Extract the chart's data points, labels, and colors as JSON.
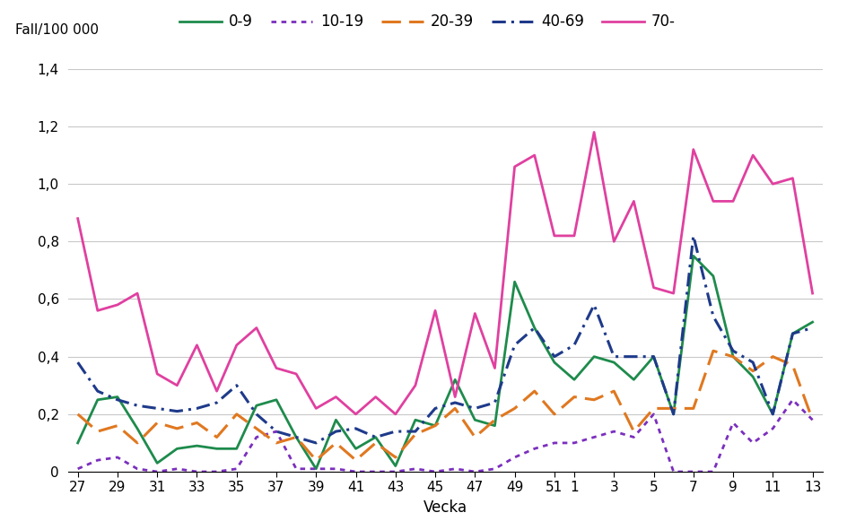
{
  "weeks": [
    27,
    28,
    29,
    30,
    31,
    32,
    33,
    34,
    35,
    36,
    37,
    38,
    39,
    40,
    41,
    42,
    43,
    44,
    45,
    46,
    47,
    48,
    49,
    50,
    51,
    1,
    2,
    3,
    4,
    5,
    6,
    7,
    8,
    9,
    10,
    11,
    12,
    13
  ],
  "xtick_labels": [
    "27",
    "29",
    "31",
    "33",
    "35",
    "37",
    "39",
    "41",
    "43",
    "45",
    "47",
    "49",
    "51",
    "1",
    "3",
    "5",
    "7",
    "9",
    "11",
    "13"
  ],
  "series": {
    "0-9": [
      0.1,
      0.25,
      0.26,
      0.15,
      0.03,
      0.08,
      0.09,
      0.08,
      0.08,
      0.23,
      0.25,
      0.12,
      0.01,
      0.18,
      0.08,
      0.12,
      0.02,
      0.18,
      0.16,
      0.32,
      0.18,
      0.16,
      0.66,
      0.5,
      0.38,
      0.32,
      0.4,
      0.38,
      0.32,
      0.4,
      0.2,
      0.75,
      0.68,
      0.4,
      0.33,
      0.2,
      0.48,
      0.52
    ],
    "10-19": [
      0.01,
      0.04,
      0.05,
      0.01,
      0.0,
      0.01,
      0.0,
      0.0,
      0.01,
      0.12,
      0.14,
      0.01,
      0.01,
      0.01,
      0.0,
      0.0,
      0.0,
      0.01,
      0.0,
      0.01,
      0.0,
      0.01,
      0.05,
      0.08,
      0.1,
      0.1,
      0.12,
      0.14,
      0.12,
      0.2,
      0.0,
      0.0,
      0.0,
      0.17,
      0.1,
      0.15,
      0.25,
      0.18
    ],
    "20-39": [
      0.2,
      0.14,
      0.16,
      0.1,
      0.17,
      0.15,
      0.17,
      0.12,
      0.2,
      0.15,
      0.1,
      0.12,
      0.04,
      0.1,
      0.04,
      0.1,
      0.05,
      0.13,
      0.16,
      0.22,
      0.12,
      0.18,
      0.22,
      0.28,
      0.2,
      0.26,
      0.25,
      0.28,
      0.14,
      0.22,
      0.22,
      0.22,
      0.42,
      0.4,
      0.35,
      0.4,
      0.37,
      0.18
    ],
    "40-69": [
      0.38,
      0.28,
      0.25,
      0.23,
      0.22,
      0.21,
      0.22,
      0.24,
      0.3,
      0.2,
      0.14,
      0.12,
      0.1,
      0.14,
      0.15,
      0.12,
      0.14,
      0.14,
      0.22,
      0.24,
      0.22,
      0.24,
      0.44,
      0.5,
      0.4,
      0.44,
      0.58,
      0.4,
      0.4,
      0.4,
      0.2,
      0.82,
      0.54,
      0.42,
      0.38,
      0.2,
      0.48,
      0.5
    ],
    "70-": [
      0.88,
      0.56,
      0.58,
      0.62,
      0.34,
      0.3,
      0.44,
      0.28,
      0.44,
      0.5,
      0.36,
      0.34,
      0.22,
      0.26,
      0.2,
      0.26,
      0.2,
      0.3,
      0.56,
      0.26,
      0.55,
      0.36,
      1.06,
      1.1,
      0.82,
      0.82,
      1.18,
      0.8,
      0.94,
      0.64,
      0.62,
      1.12,
      0.94,
      0.94,
      1.1,
      1.0,
      1.02,
      0.62
    ]
  },
  "colors": {
    "0-9": "#1e8b4c",
    "10-19": "#7b2fbe",
    "20-39": "#e07820",
    "40-69": "#1e3a8a",
    "70-": "#e040a0"
  },
  "linewidths": {
    "0-9": 2.0,
    "10-19": 2.0,
    "20-39": 2.2,
    "40-69": 2.2,
    "70-": 2.0
  },
  "ylabel": "Fall/100 000",
  "xlabel": "Vecka",
  "ylim": [
    0,
    1.4
  ],
  "yticks": [
    0,
    0.2,
    0.4,
    0.6,
    0.8,
    1.0,
    1.2,
    1.4
  ],
  "grid_color": "#c8c8c8"
}
